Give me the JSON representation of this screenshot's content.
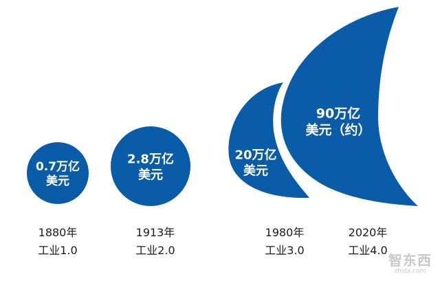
{
  "chart_data": {
    "type": "bubble",
    "title": "",
    "unit": "",
    "categories": [
      {
        "year": "1880年",
        "stage": "工业1.0",
        "value_line1": "0.7万亿",
        "value_line2": "美元",
        "value": 0.7
      },
      {
        "year": "1913年",
        "stage": "工业2.0",
        "value_line1": "2.8万亿",
        "value_line2": "美元",
        "value": 2.8
      },
      {
        "year": "1980年",
        "stage": "工业3.0",
        "value_line1": "20万亿",
        "value_line2": "美元",
        "value": 20
      },
      {
        "year": "2020年",
        "stage": "工业4.0",
        "value_line1": "90万亿",
        "value_line2": "美元（约）",
        "value": 90
      }
    ],
    "color": "#0b5ca8"
  },
  "watermark": {
    "main": "智东西",
    "sub": "zhidx.com"
  }
}
